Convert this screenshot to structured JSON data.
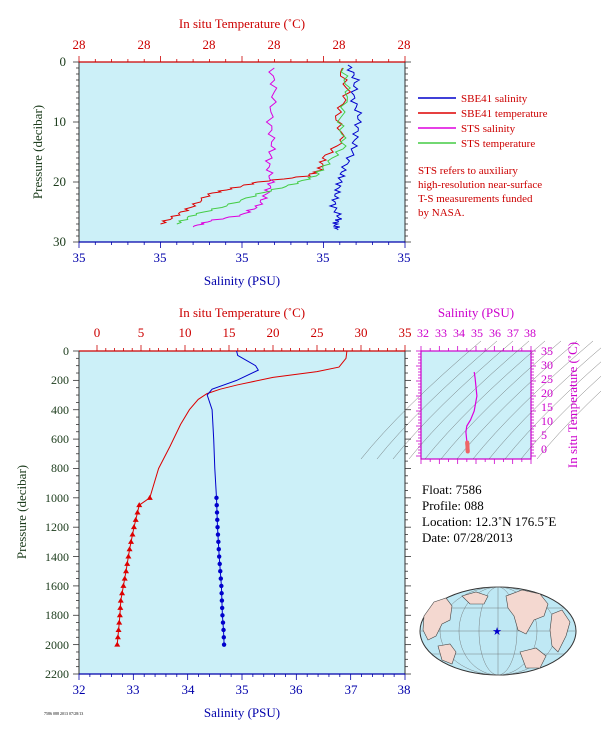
{
  "top_chart": {
    "top_axis_title": "In situ Temperature (˚C)",
    "bottom_axis_title": "Salinity (PSU)",
    "left_axis_title": "Pressure (decibar)",
    "top_tick_labels": [
      "28",
      "28",
      "28",
      "28",
      "28",
      "28"
    ],
    "bottom_tick_labels": [
      "35",
      "35",
      "35",
      "35",
      "35"
    ],
    "left_tick_labels": [
      "0",
      "10",
      "20",
      "30"
    ],
    "legend": [
      {
        "label": "SBE41 salinity",
        "color": "#0000cc"
      },
      {
        "label": "SBE41 temperature",
        "color": "#dd0000"
      },
      {
        "label": "STS salinity",
        "color": "#dd00dd"
      },
      {
        "label": "STS temperature",
        "color": "#44cc44"
      }
    ],
    "note": [
      "STS refers to auxiliary",
      "high-resolution near-surface",
      "T-S measurements funded",
      "by NASA."
    ]
  },
  "main_chart": {
    "top_axis_title": "In situ Temperature (˚C)",
    "bottom_axis_title": "Salinity (PSU)",
    "left_axis_title": "Pressure (decibar)",
    "top_tick_labels": [
      "0",
      "5",
      "10",
      "15",
      "20",
      "25",
      "30",
      "35"
    ],
    "bottom_tick_labels": [
      "32",
      "33",
      "34",
      "35",
      "36",
      "37",
      "38"
    ],
    "left_tick_labels": [
      "0",
      "200",
      "400",
      "600",
      "800",
      "1000",
      "1200",
      "1400",
      "1600",
      "1800",
      "2000",
      "2200"
    ]
  },
  "ts_inset": {
    "top_axis_title": "Salinity (PSU)",
    "right_axis_title": "In situ Temperature (˚C)",
    "top_tick_labels": [
      "32",
      "33",
      "34",
      "35",
      "36",
      "37",
      "38"
    ],
    "right_tick_labels": [
      "35",
      "30",
      "25",
      "20",
      "15",
      "10",
      "5",
      "0"
    ]
  },
  "float_info": {
    "float": "Float:  7586",
    "profile": "Profile:  088",
    "location": "Location:  12.3˚N  176.5˚E",
    "date": "Date:  07/28/2013"
  },
  "footnote": "7586 088 2013 07/28/13",
  "colors": {
    "plot_bg": "#ccf0f8",
    "temperature": "#dd0000",
    "salinity": "#0000cc",
    "sts_salinity": "#dd00dd",
    "sts_temperature": "#44cc44",
    "axis_red": "#cc0000",
    "axis_blue": "#0000aa"
  },
  "chart_data": [
    {
      "type": "line",
      "title": "",
      "xlabel": "Salinity (PSU)",
      "ylabel": "Pressure (decibar)",
      "ylim": [
        30,
        0
      ],
      "series": [
        {
          "name": "SBE41 salinity",
          "x": [
            34.55,
            34.6,
            34.58,
            34.62,
            34.6,
            34.58,
            34.52,
            34.5,
            34.48,
            34.46,
            34.5,
            34.47,
            34.49
          ],
          "y": [
            0.5,
            3,
            6,
            9,
            12,
            15,
            18,
            20,
            22,
            24,
            26,
            27,
            28
          ]
        },
        {
          "name": "SBE41 temperature",
          "x": [
            34.5,
            34.55,
            34.48,
            34.52,
            34.4,
            34.38,
            34.3,
            34.0,
            33.85,
            33.7,
            33.6,
            33.5,
            33.4
          ],
          "y": [
            1,
            5,
            9,
            13,
            16,
            18,
            19,
            20,
            21,
            22,
            24,
            25.5,
            27
          ]
        },
        {
          "name": "STS salinity",
          "x": [
            34.08,
            34.1,
            34.07,
            34.09,
            34.06,
            34.08,
            34.05,
            34.0,
            33.9,
            33.7,
            33.6
          ],
          "y": [
            1,
            5,
            10,
            14,
            17,
            20,
            22,
            24,
            25.5,
            26.5,
            27.5
          ]
        },
        {
          "name": "STS temperature",
          "x": [
            34.52,
            34.55,
            34.5,
            34.53,
            34.42,
            34.35,
            34.2,
            34.0,
            33.8,
            33.6,
            33.5
          ],
          "y": [
            1,
            5,
            10,
            14,
            17,
            19,
            20.5,
            22,
            24,
            25.5,
            27
          ]
        }
      ]
    },
    {
      "type": "line",
      "title": "",
      "xlabel": "Salinity (PSU)",
      "ylabel": "Pressure (decibar)",
      "xlim": [
        32,
        38
      ],
      "ylim": [
        2200,
        0
      ],
      "x2label": "In situ Temperature (˚C)",
      "x2lim": [
        0,
        35
      ],
      "series": [
        {
          "name": "temperature",
          "axis": "top",
          "x": [
            28.4,
            28.3,
            27.5,
            25.0,
            20.0,
            16.0,
            14.0,
            12.5,
            11.5,
            10.5,
            9.5,
            8.3,
            7.0,
            6.0,
            4.8,
            4.2,
            3.7,
            3.3,
            3.0,
            2.7,
            2.6,
            2.45,
            2.3
          ],
          "y": [
            0,
            50,
            110,
            140,
            180,
            230,
            260,
            290,
            330,
            400,
            500,
            650,
            800,
            1000,
            1050,
            1200,
            1350,
            1500,
            1600,
            1700,
            1800,
            1900,
            2000
          ]
        },
        {
          "name": "salinity",
          "axis": "bottom",
          "x": [
            34.9,
            34.92,
            35.25,
            35.3,
            34.9,
            34.45,
            34.36,
            34.45,
            34.48,
            34.5,
            34.53,
            34.55,
            34.58,
            34.62,
            34.64,
            34.66,
            34.67
          ],
          "y": [
            0,
            30,
            100,
            130,
            200,
            260,
            300,
            400,
            600,
            800,
            1000,
            1200,
            1400,
            1600,
            1800,
            1900,
            2000
          ]
        }
      ]
    },
    {
      "type": "line",
      "title": "",
      "xlabel": "Salinity (PSU)",
      "ylabel": "In situ Temperature (˚C)",
      "xlim": [
        32,
        38
      ],
      "ylim": [
        -1,
        35
      ],
      "series": [
        {
          "name": "T-S",
          "x": [
            34.9,
            34.95,
            35.05,
            34.9,
            34.7,
            34.5,
            34.45,
            34.5,
            34.55
          ],
          "y": [
            28,
            26,
            20,
            15,
            12,
            10,
            8,
            5,
            2.5
          ]
        }
      ]
    }
  ]
}
